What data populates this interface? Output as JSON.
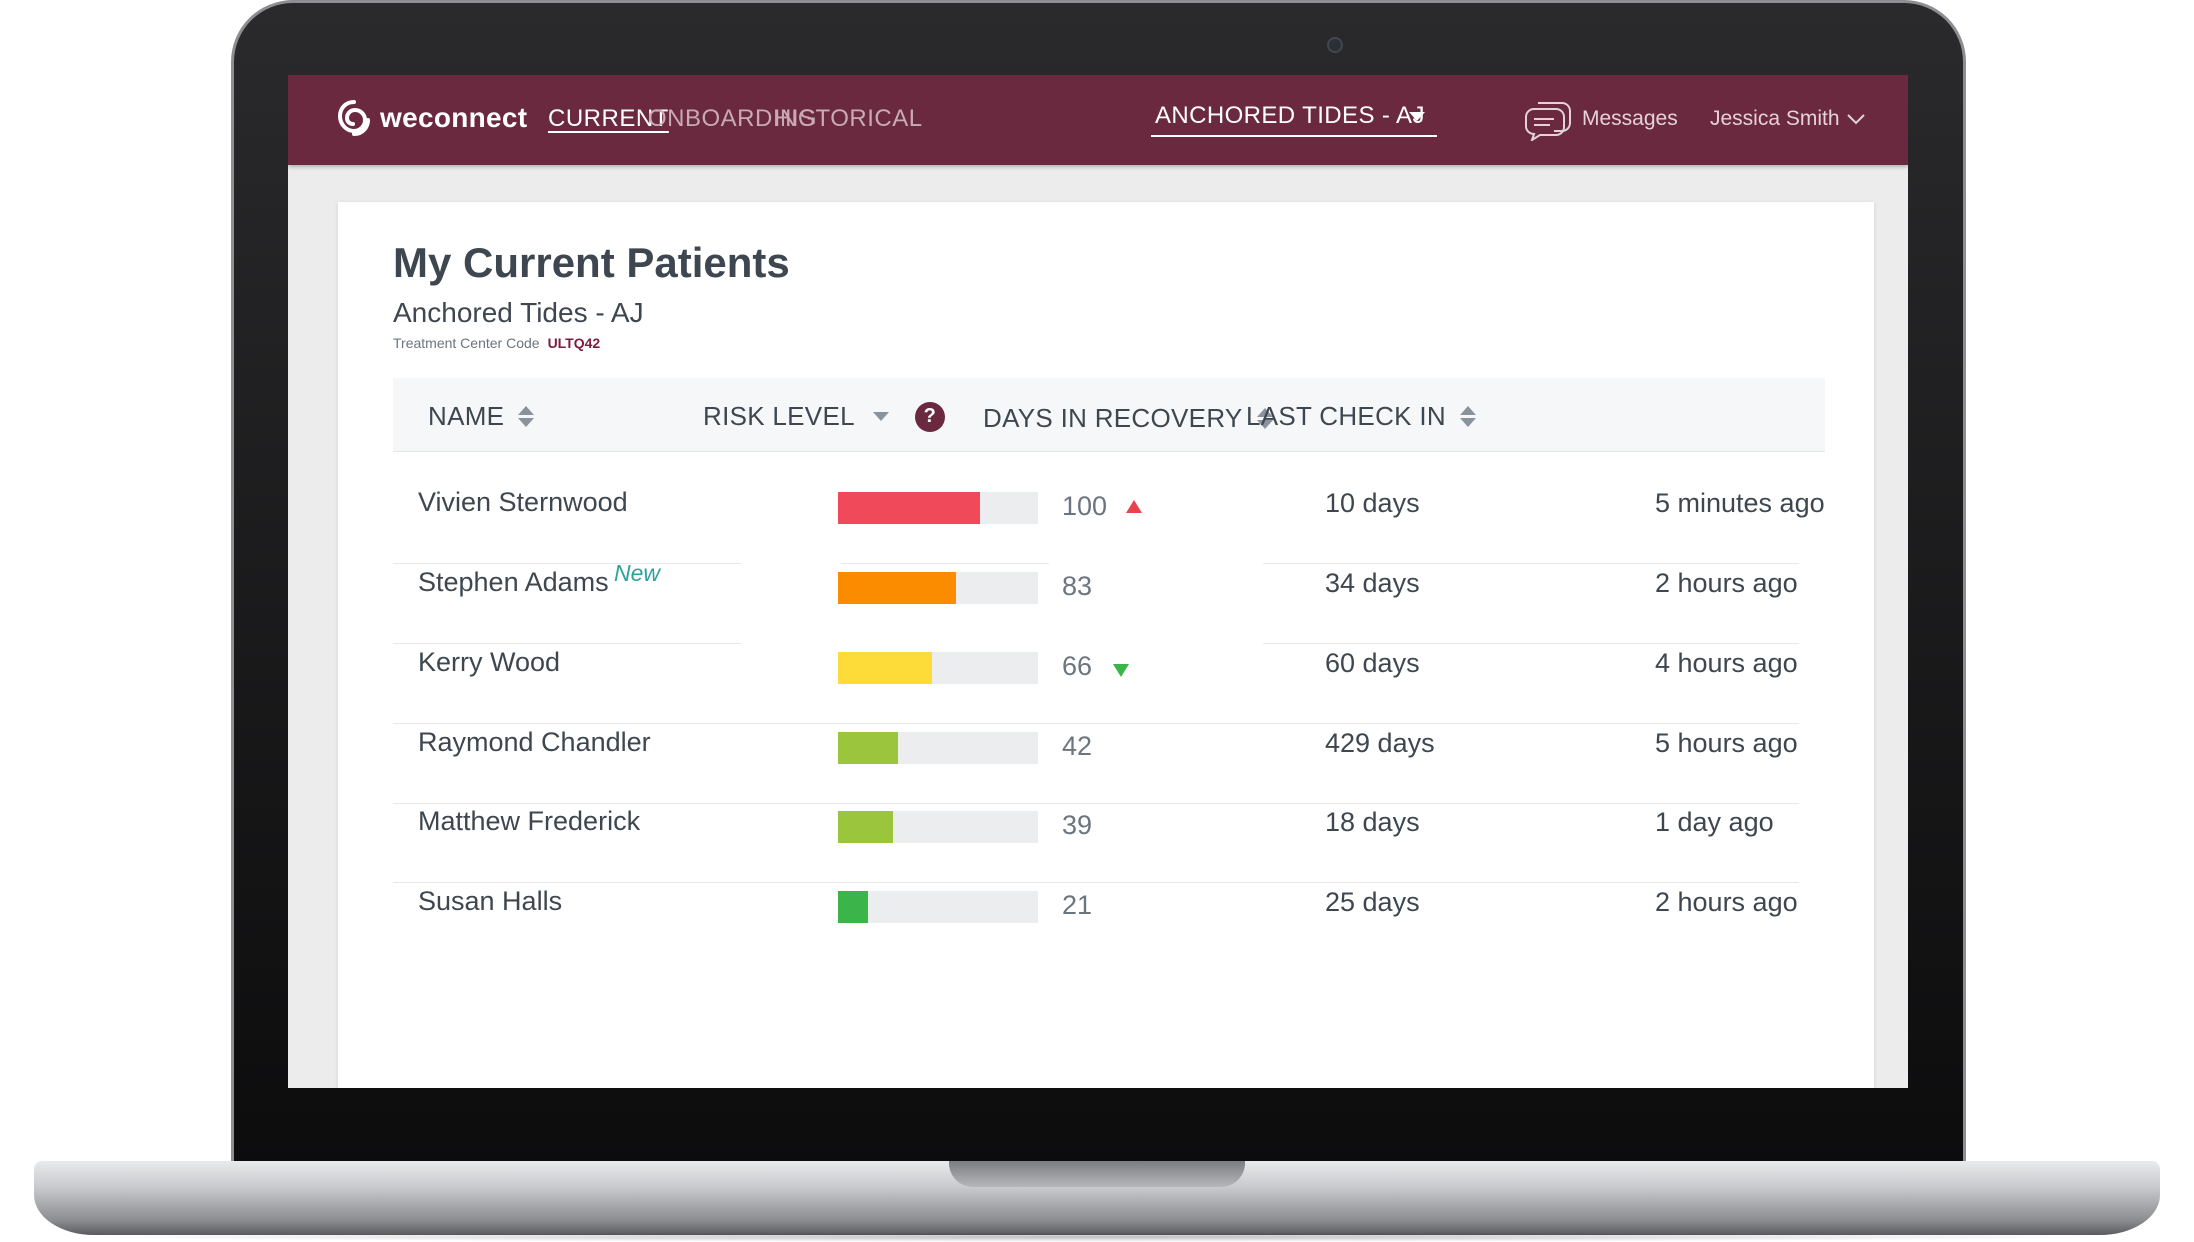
{
  "brand": {
    "name": "weconnect",
    "accent": "#6b2940"
  },
  "nav": {
    "links": [
      {
        "label": "CURRENT",
        "active": true
      },
      {
        "label": "ONBOARDING",
        "active": false
      },
      {
        "label": "HISTORICAL",
        "active": false
      }
    ],
    "center_select": "ANCHORED TIDES - AJ",
    "messages_label": "Messages",
    "user_name": "Jessica Smith"
  },
  "page": {
    "title": "My Current Patients",
    "center_name": "Anchored Tides - AJ",
    "code_label": "Treatment Center Code",
    "code_value": "ULTQ42"
  },
  "table": {
    "headers": {
      "name": "NAME",
      "risk": "RISK LEVEL",
      "days": "DAYS IN RECOVERY",
      "checkin": "LAST CHECK IN"
    },
    "help_symbol": "?",
    "rows": [
      {
        "name": "Vivien Sternwood",
        "badge": "",
        "risk": 100,
        "risk_color": "#f04a5a",
        "trend": "up",
        "days": "10 days",
        "checkin": "5 minutes ago"
      },
      {
        "name": "Stephen Adams",
        "badge": "New",
        "risk": 83,
        "risk_color": "#fb8c00",
        "trend": "",
        "days": "34 days",
        "checkin": "2 hours ago"
      },
      {
        "name": "Kerry Wood",
        "badge": "",
        "risk": 66,
        "risk_color": "#fddc3a",
        "trend": "down",
        "days": "60 days",
        "checkin": "4 hours ago"
      },
      {
        "name": "Raymond Chandler",
        "badge": "",
        "risk": 42,
        "risk_color": "#9bc53d",
        "trend": "",
        "days": "429 days",
        "checkin": "5 hours ago"
      },
      {
        "name": "Matthew Frederick",
        "badge": "",
        "risk": 39,
        "risk_color": "#9bc53d",
        "trend": "",
        "days": "18 days",
        "checkin": "1 day ago"
      },
      {
        "name": "Susan Halls",
        "badge": "",
        "risk": 21,
        "risk_color": "#3bb54a",
        "trend": "",
        "days": "25 days",
        "checkin": "2 hours ago"
      }
    ]
  },
  "icons": {
    "logo": "weconnect-logo-icon",
    "messages": "chat-bubble-icon",
    "user_caret": "chevron-down-icon",
    "sort": "sort-icon",
    "help": "help-icon",
    "trend_up": "triangle-up-icon",
    "trend_down": "triangle-down-icon"
  }
}
